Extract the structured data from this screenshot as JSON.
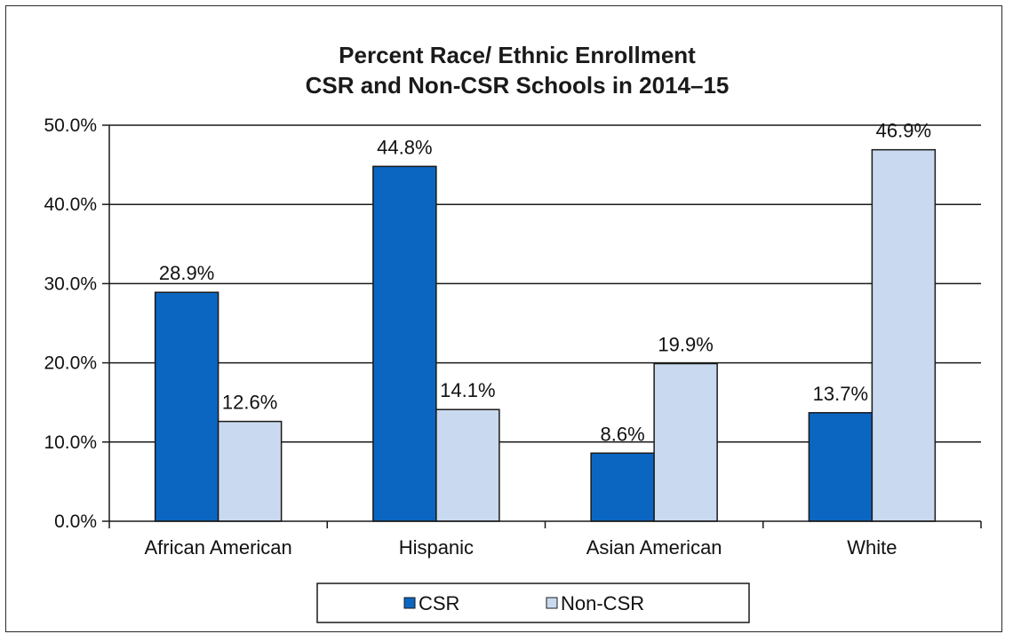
{
  "chart_data": {
    "type": "bar",
    "title": [
      "Percent Race/ Ethnic Enrollment",
      "CSR and Non-CSR Schools in 2014–15"
    ],
    "categories": [
      "African American",
      "Hispanic",
      "Asian American",
      "White"
    ],
    "series": [
      {
        "name": "CSR",
        "color": "#0b66c2",
        "values": [
          28.9,
          44.8,
          8.6,
          13.7
        ],
        "labels": [
          "28.9%",
          "44.8%",
          "8.6%",
          "13.7%"
        ]
      },
      {
        "name": "Non-CSR",
        "color": "#c9daf0",
        "values": [
          12.6,
          14.1,
          19.9,
          46.9
        ],
        "labels": [
          "12.6%",
          "14.1%",
          "19.9%",
          "46.9%"
        ]
      }
    ],
    "ylim": [
      0,
      50
    ],
    "yticks": [
      0,
      10,
      20,
      30,
      40,
      50
    ],
    "ytick_labels": [
      "0.0%",
      "10.0%",
      "20.0%",
      "30.0%",
      "40.0%",
      "50.0%"
    ],
    "grid": true,
    "legend_position": "bottom"
  }
}
